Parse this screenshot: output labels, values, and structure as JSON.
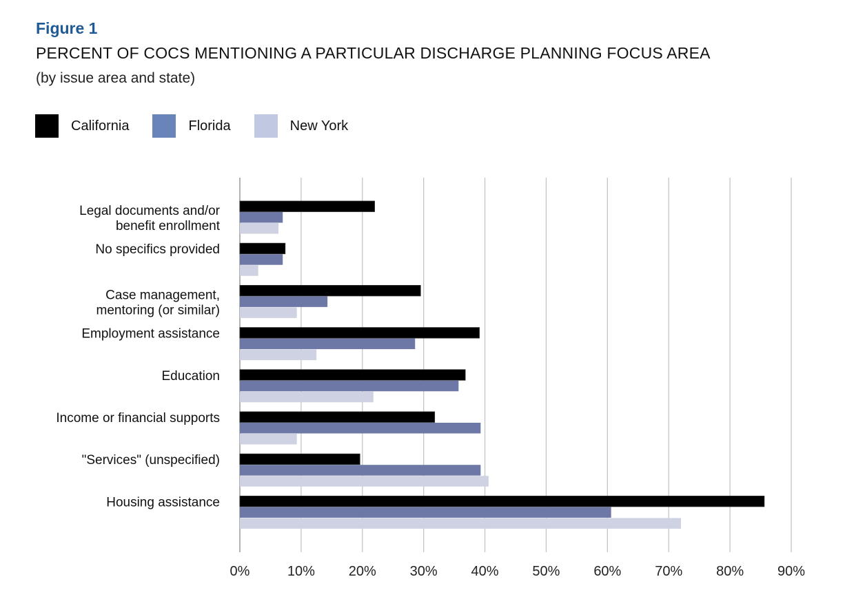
{
  "figure_label": "Figure 1",
  "chart_data": {
    "type": "bar",
    "orientation": "horizontal",
    "title": "PERCENT OF COCS MENTIONING A PARTICULAR DISCHARGE PLANNING FOCUS AREA",
    "subtitle": "(by issue area and state)",
    "xlabel": "",
    "ylabel": "",
    "xlim": [
      0,
      90
    ],
    "x_ticks": [
      "0%",
      "10%",
      "20%",
      "30%",
      "40%",
      "50%",
      "60%",
      "70%",
      "80%",
      "90%"
    ],
    "grid": true,
    "legend_position": "top-left",
    "categories": [
      [
        "Legal documents and/or",
        "benefit enrollment"
      ],
      [
        "No specifics provided"
      ],
      [
        "Case management,",
        "mentoring (or similar)"
      ],
      [
        "Employment assistance"
      ],
      [
        "Education"
      ],
      [
        "Income or financial supports"
      ],
      [
        "\"Services\" (unspecified)"
      ],
      [
        "Housing assistance"
      ]
    ],
    "series": [
      {
        "name": "California",
        "color": "#000000",
        "values": [
          22,
          7.4,
          29.5,
          39.1,
          36.8,
          31.8,
          19.6,
          85.6
        ]
      },
      {
        "name": "Florida",
        "color": "#6e78a6",
        "values": [
          7,
          7,
          14.3,
          28.6,
          35.7,
          39.3,
          39.3,
          60.6
        ]
      },
      {
        "name": "New York",
        "color": "#cfd2e2",
        "values": [
          6.3,
          3,
          9.3,
          12.5,
          21.8,
          9.3,
          40.6,
          72
        ]
      }
    ]
  },
  "legend_colors": [
    "#000000",
    "#6884b8",
    "#c0c8e2"
  ]
}
